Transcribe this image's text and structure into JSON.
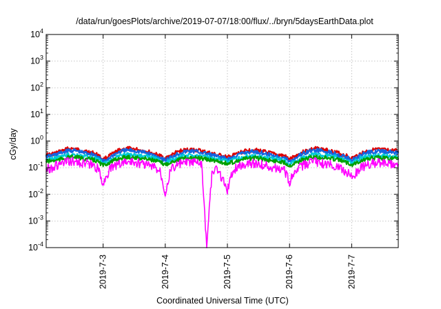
{
  "chart_data": {
    "type": "line",
    "title": "/data/run/goesPlots/archive/2019-07-07/18:00/flux/../bryn/5daysEarthData.plot",
    "xlabel": "Coordinated Universal Time (UTC)",
    "ylabel": "cGy/day",
    "y_scale": "log",
    "ylim": [
      0.0001,
      10000
    ],
    "y_ticks": [
      {
        "value": 0.0001,
        "base": "10",
        "exp": "-4"
      },
      {
        "value": 0.001,
        "base": "10",
        "exp": "-3"
      },
      {
        "value": 0.01,
        "base": "10",
        "exp": "-2"
      },
      {
        "value": 0.1,
        "base": "10",
        "exp": "-1"
      },
      {
        "value": 1,
        "base": "10",
        "exp": "0"
      },
      {
        "value": 10,
        "base": "10",
        "exp": "1"
      },
      {
        "value": 100,
        "base": "10",
        "exp": "2"
      },
      {
        "value": 1000,
        "base": "10",
        "exp": "3"
      },
      {
        "value": 10000,
        "base": "10",
        "exp": "4"
      }
    ],
    "xlim": [
      "2019-07-02 02:00",
      "2019-07-07 18:00"
    ],
    "x_ticks": [
      {
        "value": "2019-07-03 00:00",
        "label": "2019-7-3"
      },
      {
        "value": "2019-07-04 00:00",
        "label": "2019-7-4"
      },
      {
        "value": "2019-07-05 00:00",
        "label": "2019-7-5"
      },
      {
        "value": "2019-07-06 00:00",
        "label": "2019-7-6"
      },
      {
        "value": "2019-07-07 00:00",
        "label": "2019-7-7"
      }
    ],
    "grid": true,
    "x": [
      "2019-07-02 02:00",
      "2019-07-02 04:00",
      "2019-07-02 06:00",
      "2019-07-02 08:00",
      "2019-07-02 10:00",
      "2019-07-02 12:00",
      "2019-07-02 14:00",
      "2019-07-02 16:00",
      "2019-07-02 18:00",
      "2019-07-02 20:00",
      "2019-07-02 22:00",
      "2019-07-03 00:00",
      "2019-07-03 02:00",
      "2019-07-03 04:00",
      "2019-07-03 06:00",
      "2019-07-03 08:00",
      "2019-07-03 10:00",
      "2019-07-03 12:00",
      "2019-07-03 14:00",
      "2019-07-03 16:00",
      "2019-07-03 18:00",
      "2019-07-03 20:00",
      "2019-07-03 22:00",
      "2019-07-04 00:00",
      "2019-07-04 02:00",
      "2019-07-04 04:00",
      "2019-07-04 06:00",
      "2019-07-04 08:00",
      "2019-07-04 10:00",
      "2019-07-04 12:00",
      "2019-07-04 14:00",
      "2019-07-04 16:00",
      "2019-07-04 18:00",
      "2019-07-04 20:00",
      "2019-07-04 22:00",
      "2019-07-05 00:00",
      "2019-07-05 02:00",
      "2019-07-05 04:00",
      "2019-07-05 06:00",
      "2019-07-05 08:00",
      "2019-07-05 10:00",
      "2019-07-05 12:00",
      "2019-07-05 14:00",
      "2019-07-05 16:00",
      "2019-07-05 18:00",
      "2019-07-05 20:00",
      "2019-07-05 22:00",
      "2019-07-06 00:00",
      "2019-07-06 02:00",
      "2019-07-06 04:00",
      "2019-07-06 06:00",
      "2019-07-06 08:00",
      "2019-07-06 10:00",
      "2019-07-06 12:00",
      "2019-07-06 14:00",
      "2019-07-06 16:00",
      "2019-07-06 18:00",
      "2019-07-06 20:00",
      "2019-07-06 22:00",
      "2019-07-07 00:00",
      "2019-07-07 02:00",
      "2019-07-07 04:00",
      "2019-07-07 06:00",
      "2019-07-07 08:00",
      "2019-07-07 10:00",
      "2019-07-07 12:00",
      "2019-07-07 14:00",
      "2019-07-07 16:00",
      "2019-07-07 18:00"
    ],
    "series": [
      {
        "color": "#dd0000",
        "values": [
          0.3,
          0.32,
          0.36,
          0.42,
          0.5,
          0.52,
          0.48,
          0.42,
          0.4,
          0.36,
          0.3,
          0.2,
          0.26,
          0.34,
          0.44,
          0.5,
          0.52,
          0.5,
          0.46,
          0.42,
          0.38,
          0.32,
          0.28,
          0.22,
          0.28,
          0.36,
          0.42,
          0.46,
          0.48,
          0.46,
          0.42,
          0.38,
          0.34,
          0.3,
          0.28,
          0.24,
          0.28,
          0.34,
          0.4,
          0.44,
          0.46,
          0.44,
          0.4,
          0.36,
          0.32,
          0.3,
          0.28,
          0.2,
          0.26,
          0.34,
          0.42,
          0.48,
          0.52,
          0.5,
          0.46,
          0.42,
          0.38,
          0.32,
          0.28,
          0.22,
          0.28,
          0.36,
          0.42,
          0.46,
          0.48,
          0.46,
          0.44,
          0.44,
          0.42
        ]
      },
      {
        "color": "#1565e0",
        "values": [
          0.26,
          0.28,
          0.32,
          0.36,
          0.42,
          0.44,
          0.42,
          0.37,
          0.35,
          0.32,
          0.26,
          0.17,
          0.22,
          0.3,
          0.38,
          0.43,
          0.45,
          0.43,
          0.4,
          0.37,
          0.33,
          0.28,
          0.24,
          0.19,
          0.24,
          0.31,
          0.36,
          0.4,
          0.42,
          0.4,
          0.37,
          0.33,
          0.3,
          0.26,
          0.24,
          0.21,
          0.24,
          0.3,
          0.35,
          0.38,
          0.4,
          0.38,
          0.35,
          0.31,
          0.28,
          0.26,
          0.24,
          0.17,
          0.22,
          0.3,
          0.36,
          0.42,
          0.45,
          0.43,
          0.4,
          0.37,
          0.33,
          0.28,
          0.24,
          0.19,
          0.24,
          0.31,
          0.36,
          0.4,
          0.42,
          0.4,
          0.38,
          0.38,
          0.36
        ]
      },
      {
        "color": "#00c8d8",
        "values": [
          0.2,
          0.21,
          0.23,
          0.26,
          0.3,
          0.31,
          0.3,
          0.27,
          0.26,
          0.24,
          0.2,
          0.14,
          0.17,
          0.22,
          0.27,
          0.3,
          0.31,
          0.3,
          0.28,
          0.27,
          0.25,
          0.22,
          0.19,
          0.15,
          0.19,
          0.23,
          0.26,
          0.28,
          0.29,
          0.28,
          0.27,
          0.25,
          0.23,
          0.21,
          0.19,
          0.17,
          0.19,
          0.22,
          0.25,
          0.27,
          0.28,
          0.27,
          0.25,
          0.23,
          0.22,
          0.21,
          0.19,
          0.14,
          0.17,
          0.22,
          0.26,
          0.29,
          0.31,
          0.3,
          0.28,
          0.27,
          0.25,
          0.22,
          0.19,
          0.15,
          0.19,
          0.23,
          0.26,
          0.28,
          0.29,
          0.28,
          0.27,
          0.27,
          0.26
        ]
      },
      {
        "color": "#00a000",
        "values": [
          0.17,
          0.18,
          0.19,
          0.21,
          0.24,
          0.25,
          0.24,
          0.22,
          0.21,
          0.2,
          0.17,
          0.12,
          0.15,
          0.18,
          0.22,
          0.24,
          0.25,
          0.24,
          0.23,
          0.22,
          0.21,
          0.18,
          0.16,
          0.13,
          0.16,
          0.19,
          0.21,
          0.23,
          0.24,
          0.23,
          0.22,
          0.2,
          0.19,
          0.18,
          0.16,
          0.14,
          0.16,
          0.18,
          0.21,
          0.22,
          0.23,
          0.22,
          0.21,
          0.19,
          0.18,
          0.17,
          0.16,
          0.12,
          0.15,
          0.18,
          0.21,
          0.24,
          0.25,
          0.24,
          0.23,
          0.22,
          0.21,
          0.18,
          0.16,
          0.13,
          0.16,
          0.19,
          0.21,
          0.23,
          0.24,
          0.23,
          0.22,
          0.22,
          0.21
        ]
      },
      {
        "color": "#ff00ff",
        "values": [
          0.09,
          0.1,
          0.12,
          0.14,
          0.16,
          0.17,
          0.16,
          0.15,
          0.14,
          0.12,
          0.09,
          0.025,
          0.07,
          0.11,
          0.14,
          0.16,
          0.17,
          0.16,
          0.15,
          0.14,
          0.12,
          0.1,
          0.08,
          0.012,
          0.08,
          0.12,
          0.14,
          0.15,
          0.16,
          0.15,
          0.14,
          0.0001,
          0.06,
          0.09,
          0.04,
          0.015,
          0.07,
          0.11,
          0.13,
          0.15,
          0.15,
          0.14,
          0.13,
          0.11,
          0.1,
          0.09,
          0.08,
          0.03,
          0.06,
          0.1,
          0.13,
          0.15,
          0.16,
          0.15,
          0.14,
          0.13,
          0.11,
          0.09,
          0.07,
          0.04,
          0.07,
          0.11,
          0.13,
          0.14,
          0.15,
          0.14,
          0.14,
          0.14,
          0.13
        ]
      }
    ]
  }
}
